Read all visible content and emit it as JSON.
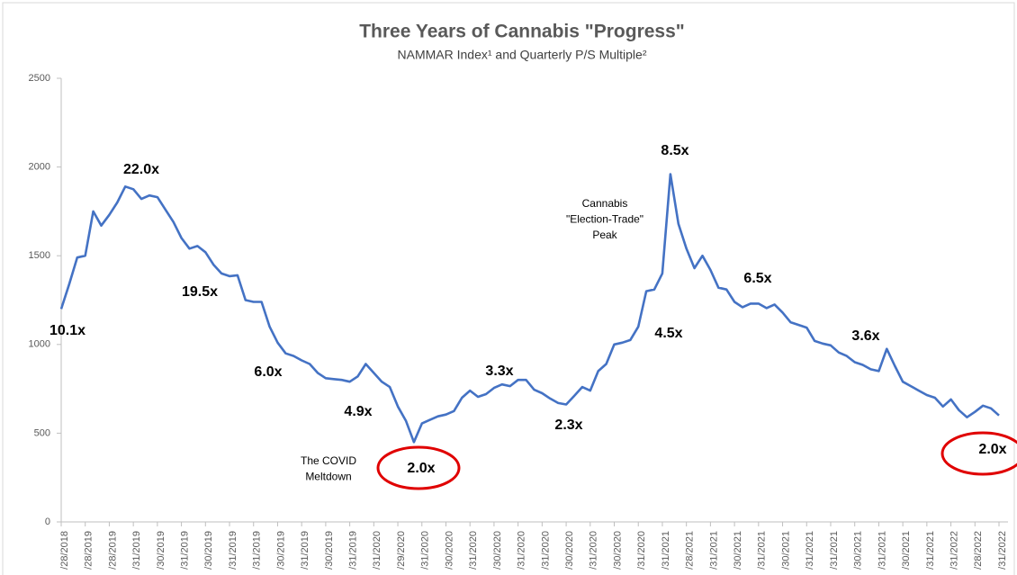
{
  "chart_data": {
    "type": "line",
    "title": "Three Years of Cannabis \"Progress\"",
    "subtitle": "NAMMAR Index¹ and Quarterly P/S Multiple²",
    "label_every": 3,
    "categories_labeled": [
      "/28/2018",
      "/28/2019",
      "/28/2019",
      "/31/2019",
      "/30/2019",
      "/31/2019",
      "/30/2019",
      "/31/2019",
      "/31/2019",
      "/30/2019",
      "/31/2019",
      "/30/2019",
      "/31/2019",
      "/31/2020",
      "/29/2020",
      "/31/2020",
      "/30/2020",
      "/31/2020",
      "/30/2020",
      "/31/2020",
      "/31/2020",
      "/30/2020",
      "/31/2020",
      "/30/2020",
      "/31/2020",
      "/31/2021",
      "/28/2021",
      "/31/2021",
      "/30/2021",
      "/31/2021",
      "/30/2021",
      "/31/2021",
      "/31/2021",
      "/30/2021",
      "/31/2021",
      "/30/2021",
      "/31/2021",
      "/31/2022",
      "/28/2022",
      "/31/2022"
    ],
    "series": [
      {
        "name": "NAMMAR Index",
        "color": "#4472c4",
        "values": [
          1200,
          1340,
          1490,
          1500,
          1750,
          1670,
          1730,
          1800,
          1890,
          1875,
          1820,
          1840,
          1830,
          1760,
          1690,
          1600,
          1540,
          1555,
          1520,
          1450,
          1400,
          1385,
          1390,
          1250,
          1240,
          1240,
          1100,
          1010,
          950,
          935,
          910,
          890,
          840,
          810,
          805,
          800,
          790,
          820,
          890,
          840,
          790,
          760,
          650,
          570,
          450,
          555,
          575,
          595,
          605,
          625,
          700,
          740,
          705,
          720,
          755,
          775,
          765,
          800,
          800,
          745,
          725,
          695,
          670,
          662,
          710,
          760,
          740,
          850,
          890,
          1000,
          1010,
          1025,
          1100,
          1300,
          1310,
          1400,
          1960,
          1680,
          1540,
          1430,
          1500,
          1420,
          1320,
          1310,
          1240,
          1210,
          1230,
          1230,
          1205,
          1225,
          1180,
          1125,
          1110,
          1095,
          1020,
          1005,
          995,
          955,
          935,
          900,
          885,
          860,
          850,
          975,
          880,
          790,
          765,
          740,
          715,
          700,
          650,
          690,
          630,
          590,
          620,
          655,
          640,
          600
        ]
      }
    ],
    "ylim": [
      0,
      2500
    ],
    "yticks": [
      0,
      500,
      1000,
      1500,
      2000,
      2500
    ],
    "grid": false,
    "annotations": [
      "10.1x",
      "22.0x",
      "19.5x",
      "6.0x",
      "4.9x",
      "2.0x",
      "3.3x",
      "2.3x",
      "4.5x",
      "8.5x",
      "6.5x",
      "3.6x",
      "2.0x",
      [
        "The COVID",
        "Meltdown"
      ],
      [
        "Cannabis",
        "\"Election-Trade\"",
        "Peak"
      ]
    ]
  }
}
